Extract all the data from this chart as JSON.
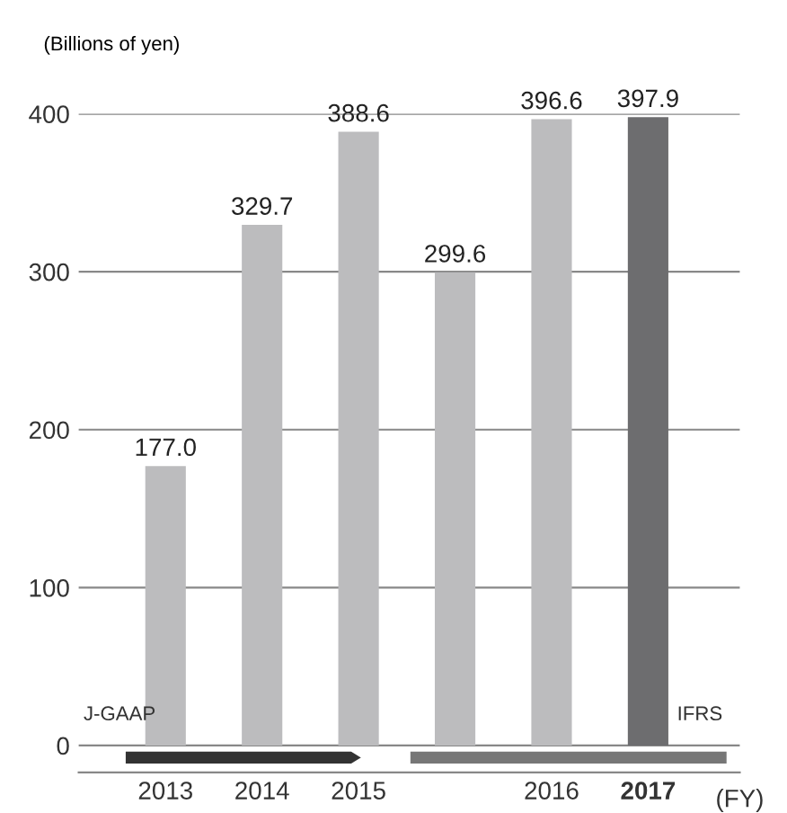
{
  "chart_data": {
    "type": "bar",
    "ylabel": "(Billions of yen)",
    "xlabel": "(FY)",
    "categories": [
      "2013",
      "2014",
      "2015",
      null,
      "2016",
      "2017"
    ],
    "values": [
      177.0,
      329.7,
      388.6,
      299.6,
      396.6,
      397.9
    ],
    "colors": [
      "#bcbcbe",
      "#bcbcbe",
      "#bcbcbe",
      "#bcbcbe",
      "#bcbcbe",
      "#6d6d6f"
    ],
    "value_labels": [
      "177.0",
      "329.7",
      "388.6",
      "299.6",
      "396.6",
      "397.9"
    ],
    "ylim": [
      -17,
      400
    ],
    "yticks": [
      0,
      100,
      200,
      300,
      400
    ],
    "grid": "y",
    "annotations": [
      "J-GAAP",
      "IFRS"
    ]
  }
}
